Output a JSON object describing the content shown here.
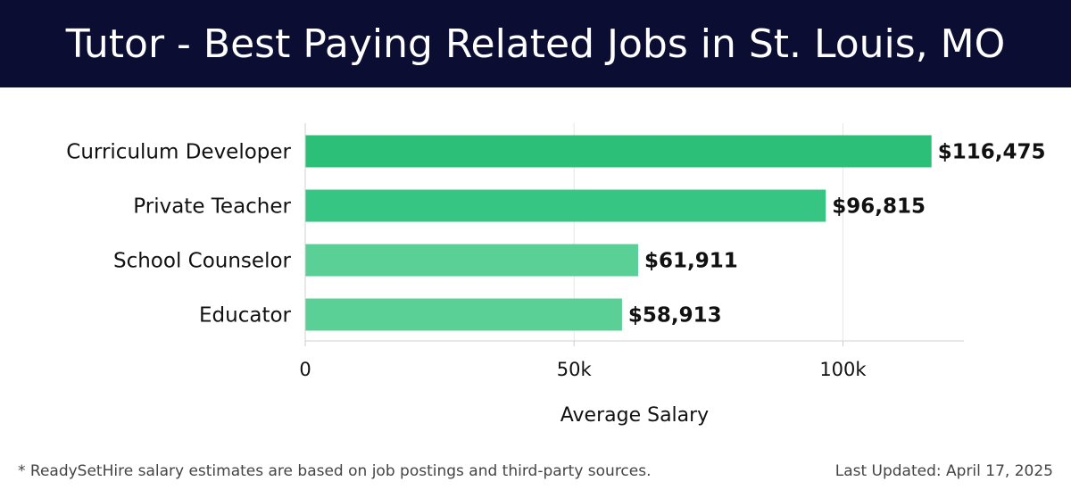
{
  "header": {
    "title": "Tutor - Best Paying Related Jobs in St. Louis, MO"
  },
  "chart_data": {
    "type": "bar",
    "orientation": "horizontal",
    "categories": [
      "Curriculum Developer",
      "Private Teacher",
      "School Counselor",
      "Educator"
    ],
    "values": [
      116475,
      96815,
      61911,
      58913
    ],
    "value_labels": [
      "$116,475",
      "$96,815",
      "$61,911",
      "$58,913"
    ],
    "bar_colors": [
      "#2bbf78",
      "#36c583",
      "#5acf96",
      "#5acf96"
    ],
    "xlabel": "Average Salary",
    "ylabel": "",
    "xlim": [
      0,
      122500
    ],
    "xticks": [
      0,
      50000,
      100000
    ],
    "xtick_labels": [
      "0",
      "50k",
      "100k"
    ],
    "grid": "vertical"
  },
  "footer": {
    "note": "* ReadySetHire salary estimates are based on job postings and third-party sources.",
    "updated": "Last Updated: April 17, 2025"
  }
}
